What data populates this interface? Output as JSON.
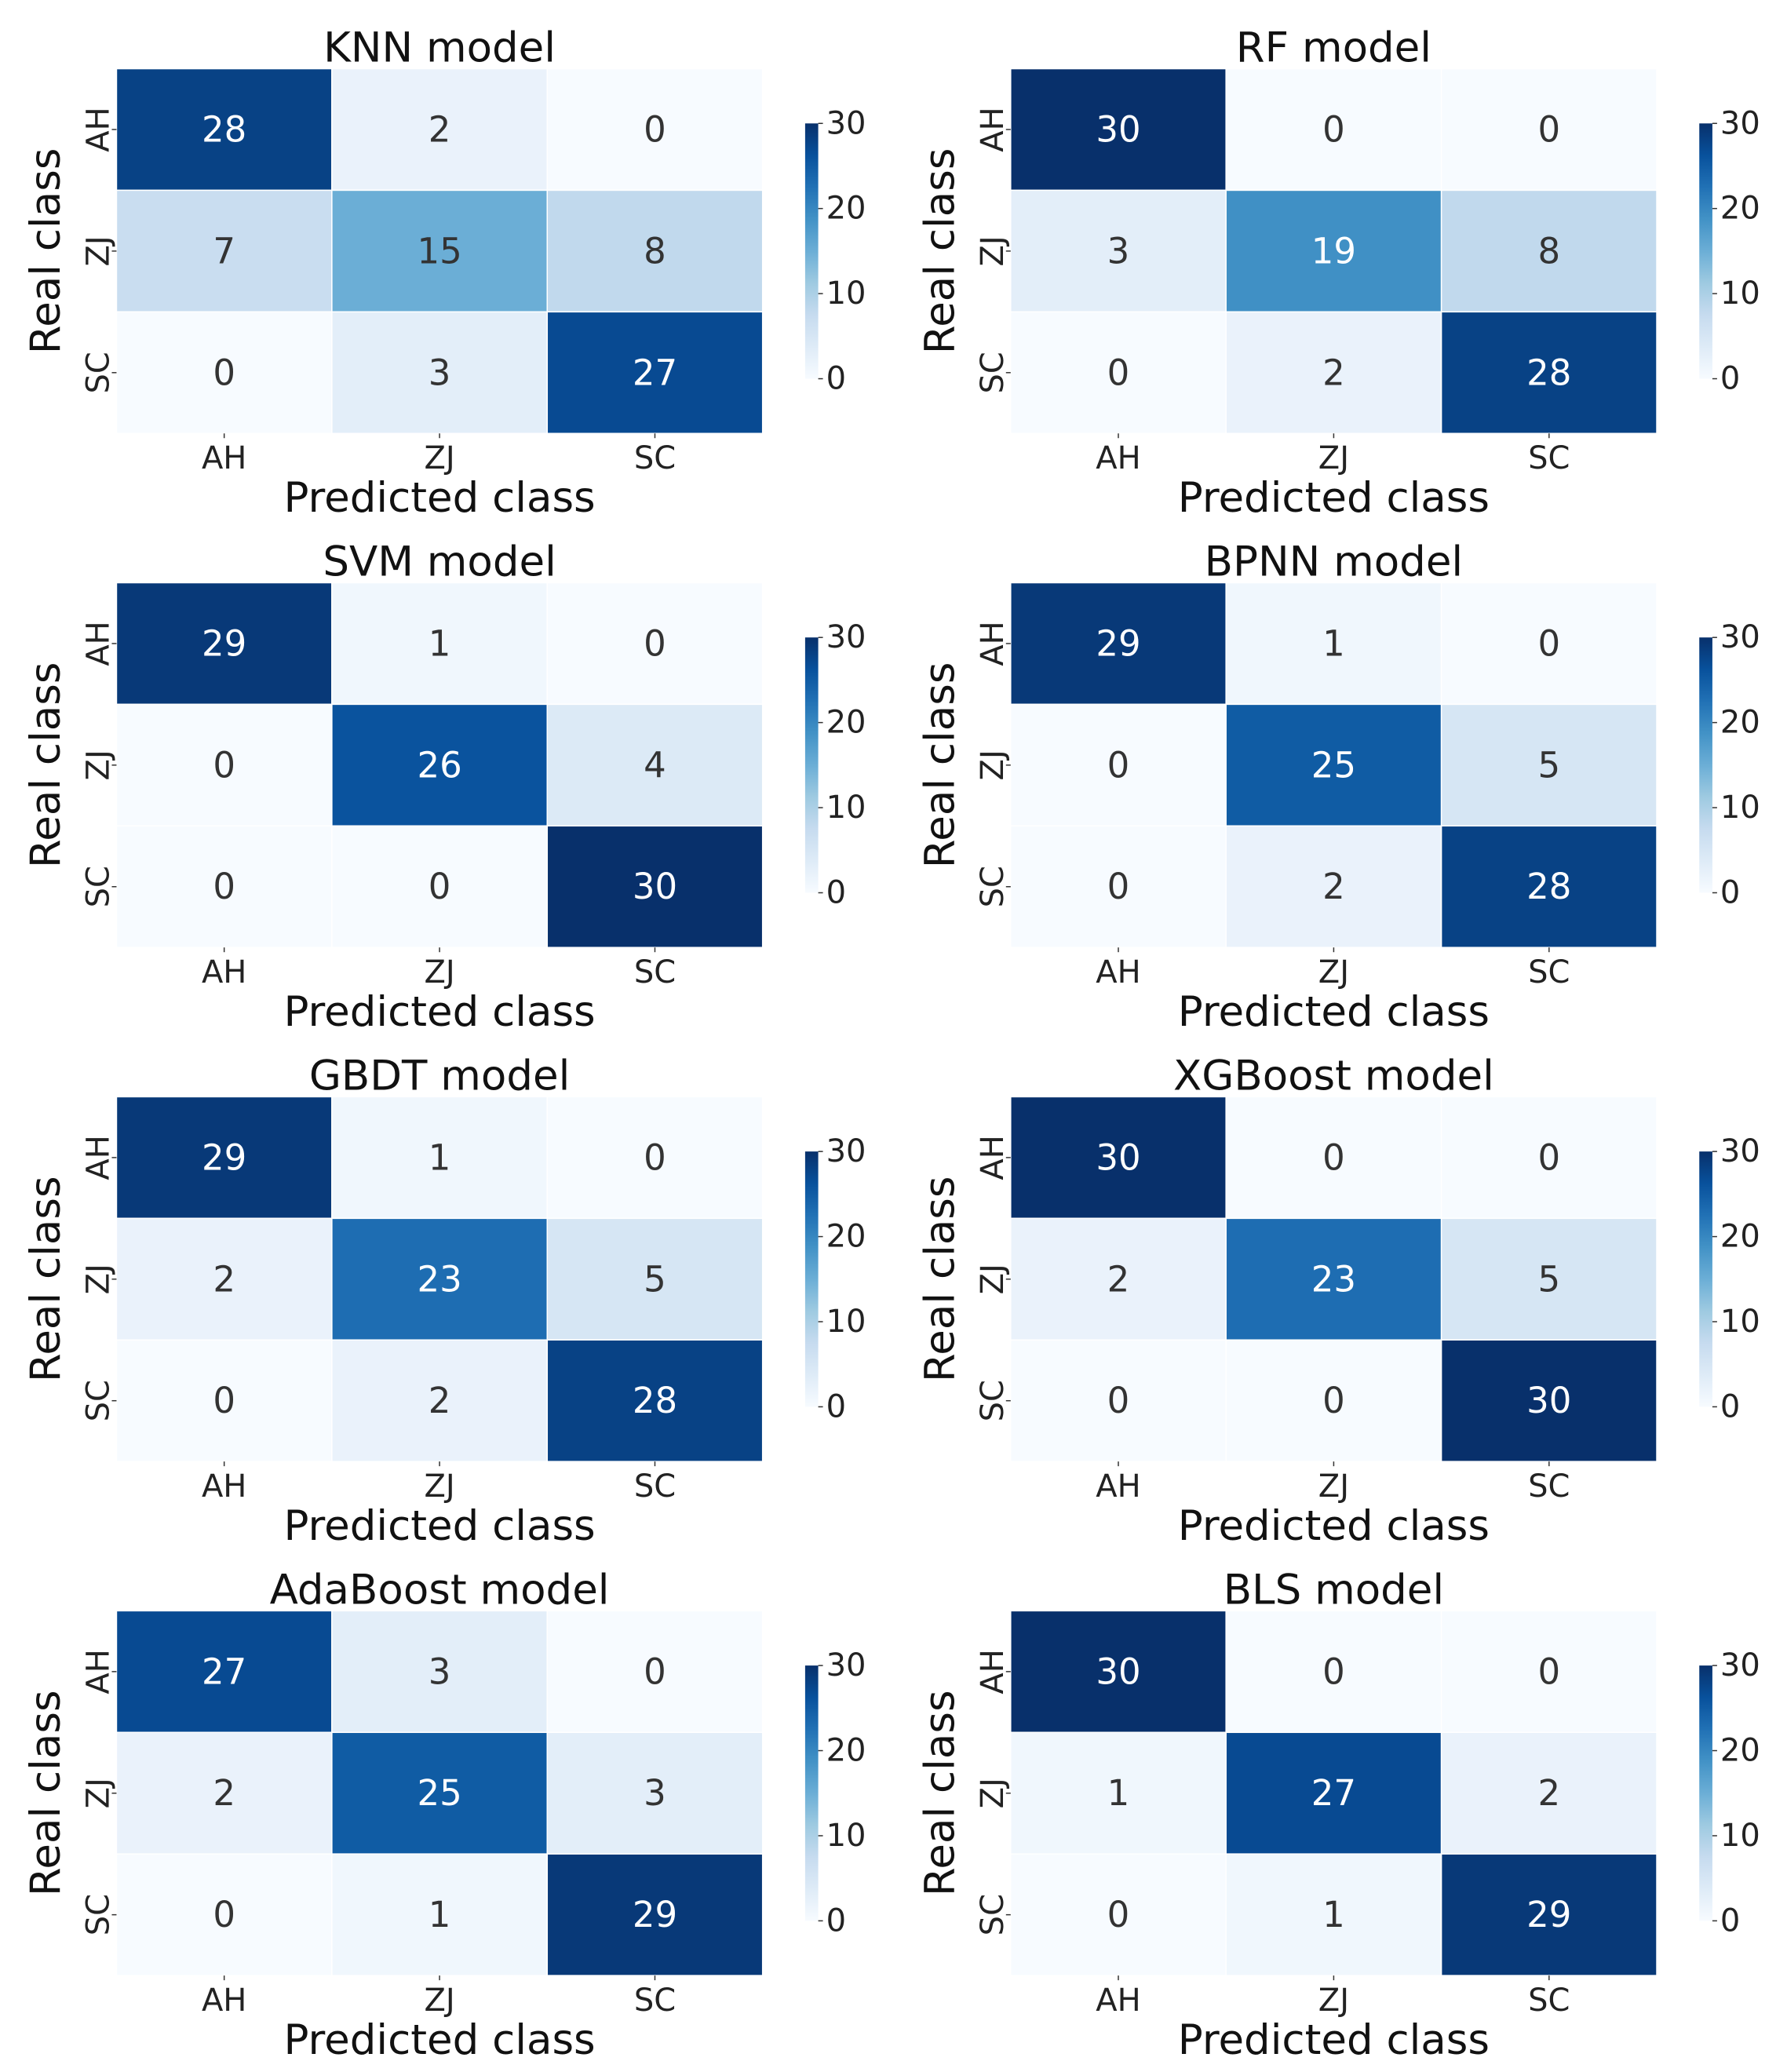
{
  "chart_data": [
    {
      "type": "heatmap",
      "title": "KNN model",
      "xlabel": "Predicted class",
      "ylabel": "Real class",
      "x_categories": [
        "AH",
        "ZJ",
        "SC"
      ],
      "y_categories": [
        "AH",
        "ZJ",
        "SC"
      ],
      "values": [
        [
          28,
          2,
          0
        ],
        [
          7,
          15,
          8
        ],
        [
          0,
          3,
          27
        ]
      ],
      "colorbar": {
        "range": [
          0,
          30
        ],
        "ticks": [
          "0",
          "10",
          "20",
          "30"
        ],
        "colormap": "Blues"
      }
    },
    {
      "type": "heatmap",
      "title": "RF model",
      "xlabel": "Predicted class",
      "ylabel": "Real class",
      "x_categories": [
        "AH",
        "ZJ",
        "SC"
      ],
      "y_categories": [
        "AH",
        "ZJ",
        "SC"
      ],
      "values": [
        [
          30,
          0,
          0
        ],
        [
          3,
          19,
          8
        ],
        [
          0,
          2,
          28
        ]
      ],
      "colorbar": {
        "range": [
          0,
          30
        ],
        "ticks": [
          "0",
          "10",
          "20",
          "30"
        ],
        "colormap": "Blues"
      }
    },
    {
      "type": "heatmap",
      "title": "SVM model",
      "xlabel": "Predicted class",
      "ylabel": "Real class",
      "x_categories": [
        "AH",
        "ZJ",
        "SC"
      ],
      "y_categories": [
        "AH",
        "ZJ",
        "SC"
      ],
      "values": [
        [
          29,
          1,
          0
        ],
        [
          0,
          26,
          4
        ],
        [
          0,
          0,
          30
        ]
      ],
      "colorbar": {
        "range": [
          0,
          30
        ],
        "ticks": [
          "0",
          "10",
          "20",
          "30"
        ],
        "colormap": "Blues"
      }
    },
    {
      "type": "heatmap",
      "title": "BPNN model",
      "xlabel": "Predicted class",
      "ylabel": "Real class",
      "x_categories": [
        "AH",
        "ZJ",
        "SC"
      ],
      "y_categories": [
        "AH",
        "ZJ",
        "SC"
      ],
      "values": [
        [
          29,
          1,
          0
        ],
        [
          0,
          25,
          5
        ],
        [
          0,
          2,
          28
        ]
      ],
      "colorbar": {
        "range": [
          0,
          30
        ],
        "ticks": [
          "0",
          "10",
          "20",
          "30"
        ],
        "colormap": "Blues"
      }
    },
    {
      "type": "heatmap",
      "title": "GBDT model",
      "xlabel": "Predicted class",
      "ylabel": "Real class",
      "x_categories": [
        "AH",
        "ZJ",
        "SC"
      ],
      "y_categories": [
        "AH",
        "ZJ",
        "SC"
      ],
      "values": [
        [
          29,
          1,
          0
        ],
        [
          2,
          23,
          5
        ],
        [
          0,
          2,
          28
        ]
      ],
      "colorbar": {
        "range": [
          0,
          30
        ],
        "ticks": [
          "0",
          "10",
          "20",
          "30"
        ],
        "colormap": "Blues"
      }
    },
    {
      "type": "heatmap",
      "title": "XGBoost model",
      "xlabel": "Predicted class",
      "ylabel": "Real class",
      "x_categories": [
        "AH",
        "ZJ",
        "SC"
      ],
      "y_categories": [
        "AH",
        "ZJ",
        "SC"
      ],
      "values": [
        [
          30,
          0,
          0
        ],
        [
          2,
          23,
          5
        ],
        [
          0,
          0,
          30
        ]
      ],
      "colorbar": {
        "range": [
          0,
          30
        ],
        "ticks": [
          "0",
          "10",
          "20",
          "30"
        ],
        "colormap": "Blues"
      }
    },
    {
      "type": "heatmap",
      "title": "AdaBoost model",
      "xlabel": "Predicted class",
      "ylabel": "Real class",
      "x_categories": [
        "AH",
        "ZJ",
        "SC"
      ],
      "y_categories": [
        "AH",
        "ZJ",
        "SC"
      ],
      "values": [
        [
          27,
          3,
          0
        ],
        [
          2,
          25,
          3
        ],
        [
          0,
          1,
          29
        ]
      ],
      "colorbar": {
        "range": [
          0,
          30
        ],
        "ticks": [
          "0",
          "10",
          "20",
          "30"
        ],
        "colormap": "Blues"
      }
    },
    {
      "type": "heatmap",
      "title": "BLS model",
      "xlabel": "Predicted class",
      "ylabel": "Real class",
      "x_categories": [
        "AH",
        "ZJ",
        "SC"
      ],
      "y_categories": [
        "AH",
        "ZJ",
        "SC"
      ],
      "values": [
        [
          30,
          0,
          0
        ],
        [
          1,
          27,
          2
        ],
        [
          0,
          1,
          29
        ]
      ],
      "colorbar": {
        "range": [
          0,
          30
        ],
        "ticks": [
          "0",
          "10",
          "20",
          "30"
        ],
        "colormap": "Blues"
      }
    }
  ]
}
